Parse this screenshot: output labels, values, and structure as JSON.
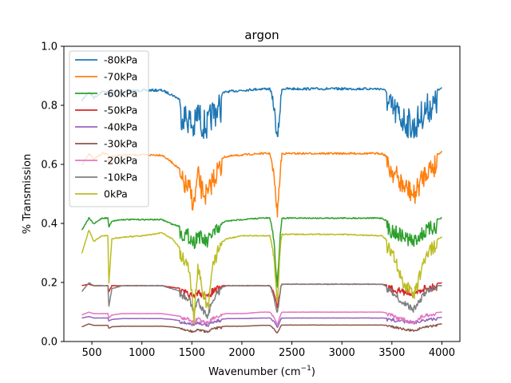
{
  "chart_data": {
    "type": "line",
    "title": "argon",
    "xlabel": "Wavenumber (cm",
    "xlabel_sup": "−1",
    "xlabel_end": ")",
    "ylabel": "% Transmission",
    "xlim": [
      220,
      4180
    ],
    "ylim": [
      0.0,
      1.0
    ],
    "xticks": [
      500,
      1000,
      1500,
      2000,
      2500,
      3000,
      3500,
      4000
    ],
    "yticks": [
      0.0,
      0.2,
      0.4,
      0.6,
      0.8,
      1.0
    ],
    "grid": false,
    "legend_position": "top-left",
    "series": [
      {
        "name": "-80kPa",
        "color": "#1f77b4",
        "x": [
          400,
          470,
          520,
          600,
          660,
          670,
          700,
          800,
          1000,
          1200,
          1300,
          1400,
          1480,
          1520,
          1560,
          1600,
          1660,
          1700,
          1760,
          1850,
          2000,
          2200,
          2280,
          2320,
          2340,
          2355,
          2370,
          2390,
          2400,
          2600,
          3000,
          3400,
          3500,
          3560,
          3620,
          3680,
          3720,
          3760,
          3800,
          3850,
          3900,
          4000
        ],
        "y": [
          0.82,
          0.85,
          0.83,
          0.85,
          0.85,
          0.83,
          0.85,
          0.85,
          0.855,
          0.855,
          0.84,
          0.82,
          0.8,
          0.77,
          0.83,
          0.79,
          0.78,
          0.82,
          0.84,
          0.85,
          0.855,
          0.86,
          0.86,
          0.82,
          0.75,
          0.7,
          0.76,
          0.84,
          0.86,
          0.86,
          0.86,
          0.86,
          0.84,
          0.82,
          0.8,
          0.79,
          0.77,
          0.8,
          0.82,
          0.84,
          0.85,
          0.86
        ]
      },
      {
        "name": "-70kPa",
        "color": "#ff7f0e",
        "x": [
          400,
          470,
          520,
          600,
          660,
          670,
          700,
          800,
          1000,
          1200,
          1300,
          1400,
          1480,
          1520,
          1560,
          1600,
          1660,
          1700,
          1760,
          1850,
          2000,
          2200,
          2280,
          2320,
          2340,
          2355,
          2370,
          2390,
          2400,
          2600,
          3000,
          3400,
          3500,
          3560,
          3620,
          3680,
          3720,
          3760,
          3800,
          3850,
          3900,
          4000
        ],
        "y": [
          0.6,
          0.64,
          0.62,
          0.64,
          0.64,
          0.6,
          0.63,
          0.635,
          0.635,
          0.635,
          0.61,
          0.58,
          0.55,
          0.5,
          0.6,
          0.55,
          0.53,
          0.58,
          0.62,
          0.63,
          0.635,
          0.64,
          0.64,
          0.58,
          0.5,
          0.45,
          0.52,
          0.62,
          0.64,
          0.64,
          0.64,
          0.64,
          0.62,
          0.59,
          0.56,
          0.55,
          0.53,
          0.56,
          0.59,
          0.62,
          0.63,
          0.645
        ]
      },
      {
        "name": "-60kPa",
        "color": "#2ca02c",
        "x": [
          400,
          470,
          520,
          600,
          660,
          670,
          700,
          800,
          1000,
          1200,
          1300,
          1400,
          1480,
          1520,
          1560,
          1600,
          1660,
          1700,
          1760,
          1850,
          2000,
          2200,
          2280,
          2320,
          2340,
          2355,
          2370,
          2390,
          2400,
          2600,
          3000,
          3400,
          3500,
          3560,
          3620,
          3680,
          3720,
          3760,
          3800,
          3850,
          3900,
          4000
        ],
        "y": [
          0.38,
          0.42,
          0.4,
          0.42,
          0.42,
          0.39,
          0.41,
          0.415,
          0.415,
          0.415,
          0.4,
          0.39,
          0.38,
          0.36,
          0.39,
          0.37,
          0.36,
          0.39,
          0.4,
          0.41,
          0.415,
          0.42,
          0.42,
          0.36,
          0.25,
          0.2,
          0.3,
          0.4,
          0.42,
          0.42,
          0.42,
          0.42,
          0.4,
          0.39,
          0.38,
          0.37,
          0.36,
          0.38,
          0.39,
          0.4,
          0.41,
          0.42
        ]
      },
      {
        "name": "-50kPa",
        "color": "#d62728",
        "x": [
          400,
          470,
          520,
          600,
          660,
          670,
          700,
          800,
          1000,
          1200,
          1300,
          1400,
          1480,
          1520,
          1560,
          1600,
          1660,
          1700,
          1760,
          1850,
          2000,
          2200,
          2280,
          2320,
          2340,
          2355,
          2370,
          2390,
          2400,
          2600,
          3000,
          3400,
          3500,
          3560,
          3620,
          3680,
          3720,
          3760,
          3800,
          3850,
          3900,
          4000
        ],
        "y": [
          0.19,
          0.195,
          0.19,
          0.19,
          0.19,
          0.17,
          0.19,
          0.19,
          0.19,
          0.19,
          0.185,
          0.18,
          0.17,
          0.16,
          0.18,
          0.17,
          0.16,
          0.18,
          0.19,
          0.19,
          0.19,
          0.19,
          0.19,
          0.17,
          0.14,
          0.12,
          0.15,
          0.19,
          0.195,
          0.195,
          0.195,
          0.195,
          0.19,
          0.185,
          0.18,
          0.18,
          0.17,
          0.18,
          0.19,
          0.195,
          0.195,
          0.2
        ]
      },
      {
        "name": "-40kPa",
        "color": "#9467bd",
        "x": [
          400,
          470,
          520,
          600,
          660,
          670,
          700,
          800,
          1000,
          1200,
          1300,
          1400,
          1480,
          1520,
          1560,
          1600,
          1660,
          1700,
          1760,
          1850,
          2000,
          2200,
          2280,
          2320,
          2340,
          2355,
          2370,
          2390,
          2400,
          2600,
          3000,
          3400,
          3500,
          3560,
          3620,
          3680,
          3720,
          3760,
          3800,
          3850,
          3900,
          4000
        ],
        "y": [
          0.08,
          0.085,
          0.08,
          0.08,
          0.08,
          0.07,
          0.075,
          0.078,
          0.078,
          0.078,
          0.075,
          0.07,
          0.065,
          0.06,
          0.07,
          0.065,
          0.06,
          0.07,
          0.075,
          0.078,
          0.078,
          0.08,
          0.08,
          0.07,
          0.06,
          0.05,
          0.06,
          0.078,
          0.08,
          0.08,
          0.08,
          0.08,
          0.078,
          0.075,
          0.072,
          0.07,
          0.068,
          0.072,
          0.076,
          0.078,
          0.08,
          0.082
        ]
      },
      {
        "name": "-30kPa",
        "color": "#8c564b",
        "x": [
          400,
          470,
          520,
          600,
          660,
          670,
          700,
          800,
          1000,
          1200,
          1300,
          1400,
          1480,
          1520,
          1560,
          1600,
          1660,
          1700,
          1760,
          1850,
          2000,
          2200,
          2280,
          2320,
          2340,
          2355,
          2370,
          2390,
          2400,
          2600,
          3000,
          3400,
          3500,
          3560,
          3620,
          3680,
          3720,
          3760,
          3800,
          3850,
          3900,
          4000
        ],
        "y": [
          0.05,
          0.06,
          0.055,
          0.055,
          0.055,
          0.045,
          0.05,
          0.052,
          0.052,
          0.052,
          0.05,
          0.045,
          0.04,
          0.035,
          0.045,
          0.04,
          0.035,
          0.045,
          0.05,
          0.052,
          0.052,
          0.055,
          0.055,
          0.045,
          0.035,
          0.03,
          0.04,
          0.055,
          0.056,
          0.056,
          0.056,
          0.056,
          0.054,
          0.05,
          0.045,
          0.042,
          0.04,
          0.045,
          0.05,
          0.054,
          0.056,
          0.06
        ]
      },
      {
        "name": "-20kPa",
        "color": "#e377c2",
        "x": [
          400,
          470,
          520,
          600,
          660,
          670,
          700,
          800,
          1000,
          1200,
          1300,
          1400,
          1480,
          1520,
          1560,
          1600,
          1660,
          1700,
          1760,
          1850,
          2000,
          2200,
          2280,
          2320,
          2340,
          2355,
          2370,
          2390,
          2400,
          2600,
          3000,
          3400,
          3500,
          3560,
          3620,
          3680,
          3720,
          3760,
          3800,
          3850,
          3900,
          4000
        ],
        "y": [
          0.09,
          0.1,
          0.095,
          0.095,
          0.095,
          0.08,
          0.09,
          0.095,
          0.095,
          0.095,
          0.09,
          0.085,
          0.08,
          0.07,
          0.085,
          0.075,
          0.07,
          0.085,
          0.09,
          0.095,
          0.095,
          0.1,
          0.1,
          0.085,
          0.07,
          0.06,
          0.075,
          0.095,
          0.1,
          0.1,
          0.1,
          0.1,
          0.095,
          0.085,
          0.08,
          0.075,
          0.07,
          0.08,
          0.09,
          0.095,
          0.098,
          0.1
        ]
      },
      {
        "name": "-10kPa",
        "color": "#7f7f7f",
        "x": [
          400,
          470,
          520,
          600,
          660,
          670,
          700,
          800,
          1000,
          1200,
          1300,
          1400,
          1480,
          1520,
          1560,
          1600,
          1660,
          1700,
          1760,
          1850,
          2000,
          2200,
          2280,
          2320,
          2340,
          2355,
          2370,
          2390,
          2400,
          2600,
          3000,
          3400,
          3500,
          3560,
          3620,
          3680,
          3720,
          3760,
          3800,
          3850,
          3900,
          4000
        ],
        "y": [
          0.17,
          0.2,
          0.19,
          0.19,
          0.19,
          0.12,
          0.18,
          0.19,
          0.19,
          0.19,
          0.18,
          0.17,
          0.15,
          0.1,
          0.16,
          0.12,
          0.1,
          0.15,
          0.18,
          0.19,
          0.19,
          0.19,
          0.19,
          0.16,
          0.12,
          0.1,
          0.14,
          0.19,
          0.195,
          0.195,
          0.195,
          0.195,
          0.18,
          0.16,
          0.14,
          0.13,
          0.12,
          0.14,
          0.16,
          0.18,
          0.19,
          0.19
        ]
      },
      {
        "name": "0kPa",
        "color": "#bcbd22",
        "x": [
          400,
          470,
          520,
          600,
          660,
          670,
          700,
          800,
          1000,
          1200,
          1300,
          1400,
          1480,
          1520,
          1560,
          1600,
          1660,
          1700,
          1760,
          1850,
          2000,
          2200,
          2280,
          2320,
          2340,
          2355,
          2370,
          2390,
          2400,
          2600,
          3000,
          3400,
          3500,
          3560,
          3620,
          3680,
          3720,
          3760,
          3800,
          3850,
          3900,
          4000
        ],
        "y": [
          0.3,
          0.38,
          0.34,
          0.36,
          0.36,
          0.2,
          0.35,
          0.355,
          0.36,
          0.37,
          0.35,
          0.31,
          0.26,
          0.1,
          0.28,
          0.2,
          0.14,
          0.27,
          0.33,
          0.35,
          0.36,
          0.36,
          0.36,
          0.3,
          0.2,
          0.14,
          0.24,
          0.36,
          0.365,
          0.365,
          0.365,
          0.36,
          0.33,
          0.27,
          0.22,
          0.2,
          0.18,
          0.22,
          0.28,
          0.32,
          0.34,
          0.355
        ]
      }
    ]
  }
}
